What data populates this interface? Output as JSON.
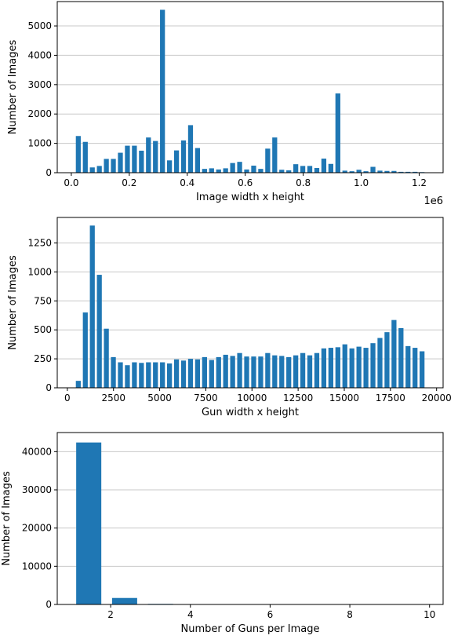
{
  "chart_data": [
    {
      "type": "histogram",
      "color": "#1f77b4",
      "grid": "y",
      "xlabel": "Image width x height",
      "ylabel": "Number of Images",
      "x_offset_label": "1e6",
      "bins": [
        12000,
        36200,
        60400,
        84600,
        108800,
        133000,
        157200,
        181400,
        205600,
        229800,
        254000,
        278200,
        302400,
        326600,
        350800,
        375000,
        399200,
        423400,
        447600,
        471800,
        496000,
        520200,
        544400,
        568600,
        592800,
        617000,
        641200,
        665400,
        689600,
        713800,
        738000,
        762200,
        786400,
        810600,
        834800,
        859000,
        883200,
        907400,
        931600,
        955800,
        980000,
        1004200,
        1028400,
        1052600,
        1076800,
        1101000,
        1125200,
        1149400,
        1173600,
        1197800,
        1222000
      ],
      "values": [
        1250,
        1050,
        180,
        230,
        470,
        470,
        680,
        920,
        920,
        750,
        1200,
        1080,
        5550,
        420,
        760,
        1100,
        1620,
        840,
        130,
        150,
        110,
        150,
        330,
        370,
        110,
        240,
        130,
        820,
        1200,
        100,
        80,
        290,
        230,
        230,
        160,
        480,
        300,
        2700,
        70,
        50,
        100,
        50,
        200,
        70,
        60,
        60,
        30,
        30,
        30,
        20
      ],
      "xlim": [
        -48500,
        1282500
      ],
      "xticks": [
        {
          "value": 0,
          "label": "0.0"
        },
        {
          "value": 200000,
          "label": "0.2"
        },
        {
          "value": 400000,
          "label": "0.4"
        },
        {
          "value": 600000,
          "label": "0.6"
        },
        {
          "value": 800000,
          "label": "0.8"
        },
        {
          "value": 1000000,
          "label": "1.0"
        },
        {
          "value": 1200000,
          "label": "1.2"
        }
      ],
      "ylim": [
        0,
        5830
      ],
      "yticks": [
        0,
        1000,
        2000,
        3000,
        4000,
        5000
      ]
    },
    {
      "type": "histogram",
      "color": "#1f77b4",
      "grid": "y",
      "xlabel": "Gun width x height",
      "ylabel": "Number of Images",
      "bins": [
        403,
        783,
        1163,
        1543,
        1923,
        2303,
        2683,
        3063,
        3443,
        3823,
        4203,
        4583,
        4963,
        5343,
        5723,
        6103,
        6483,
        6863,
        7243,
        7623,
        8003,
        8383,
        8763,
        9143,
        9523,
        9903,
        10283,
        10663,
        11043,
        11423,
        11803,
        12183,
        12563,
        12943,
        13323,
        13703,
        14083,
        14463,
        14843,
        15223,
        15603,
        15983,
        16363,
        16743,
        17123,
        17503,
        17883,
        18263,
        18643,
        19023,
        19403
      ],
      "values": [
        60,
        650,
        1400,
        975,
        510,
        265,
        220,
        195,
        220,
        215,
        220,
        220,
        220,
        210,
        245,
        235,
        250,
        245,
        265,
        240,
        265,
        285,
        275,
        300,
        270,
        270,
        270,
        300,
        280,
        275,
        265,
        280,
        300,
        280,
        300,
        340,
        345,
        350,
        375,
        340,
        355,
        345,
        385,
        430,
        480,
        585,
        515,
        360,
        345,
        315
      ],
      "xlim": [
        -547,
        20353
      ],
      "xticks": [
        0,
        2500,
        5000,
        7500,
        10000,
        12500,
        15000,
        17500,
        20000
      ],
      "ylim": [
        0,
        1470
      ],
      "yticks": [
        0,
        250,
        500,
        750,
        1000,
        1250
      ]
    },
    {
      "type": "histogram",
      "color": "#1f77b4",
      "grid": "y",
      "xlabel": "Number of Guns per Image",
      "ylabel": "Number of Images",
      "bins": [
        1,
        1.9,
        2.8,
        3.7,
        4.6,
        5.5,
        6.4,
        7.3,
        8.2,
        9.1,
        10
      ],
      "values": [
        42400,
        1700,
        150,
        100,
        60,
        20,
        10,
        5,
        3,
        2
      ],
      "xlim": [
        0.66,
        10.34
      ],
      "xticks": [
        2,
        4,
        6,
        8,
        10
      ],
      "ylim": [
        0,
        45000
      ],
      "yticks": [
        0,
        10000,
        20000,
        30000,
        40000
      ]
    }
  ]
}
